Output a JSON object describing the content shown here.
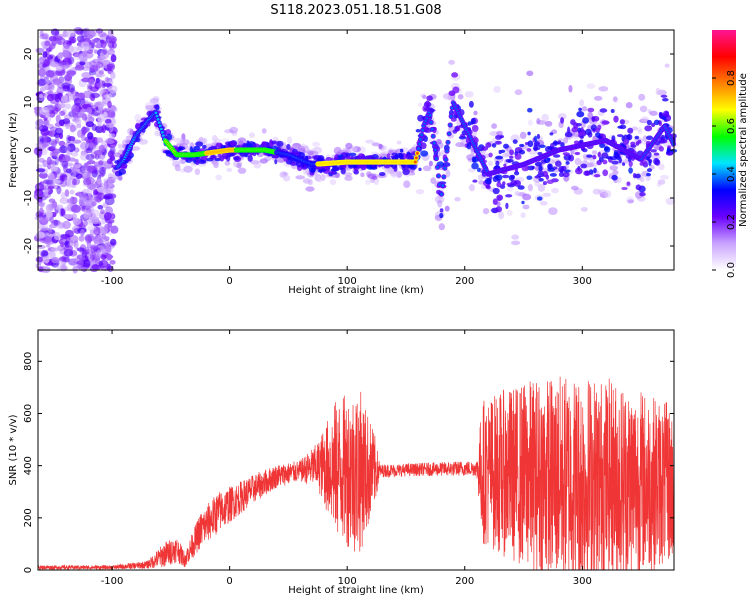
{
  "title": "S118.2023.051.18.51.G08",
  "chart_data": [
    {
      "type": "heatmap",
      "name": "spectrogram",
      "xlabel": "Height of straight line (km)",
      "ylabel": "Frequency (Hz)",
      "xlim": [
        -163,
        378
      ],
      "ylim": [
        -25,
        25
      ],
      "xticks": [
        -100,
        0,
        100,
        200,
        300
      ],
      "yticks": [
        -20,
        -10,
        0,
        10,
        20
      ],
      "colorbar": {
        "label": "Normalized spectral amplitude",
        "range": [
          0.0,
          1.0
        ],
        "ticks": [
          0.0,
          0.2,
          0.4,
          0.6,
          0.8
        ],
        "tick_labels": [
          "0.0",
          "0.2",
          "0.4",
          "0.6",
          "0.8"
        ],
        "colormap": [
          "#ffffff",
          "#c9a3ff",
          "#6a00ff",
          "#0000ff",
          "#00e5ff",
          "#00ff00",
          "#ffff00",
          "#ff8000",
          "#ff0000",
          "#ff1493"
        ]
      },
      "ridge": [
        {
          "x": -100,
          "y": -5
        },
        {
          "x": -90,
          "y": -2
        },
        {
          "x": -80,
          "y": 3
        },
        {
          "x": -70,
          "y": 6
        },
        {
          "x": -63,
          "y": 8
        },
        {
          "x": -55,
          "y": 2
        },
        {
          "x": -45,
          "y": -1
        },
        {
          "x": -30,
          "y": -1
        },
        {
          "x": 0,
          "y": 0
        },
        {
          "x": 30,
          "y": 0
        },
        {
          "x": 50,
          "y": -1
        },
        {
          "x": 70,
          "y": -3
        },
        {
          "x": 100,
          "y": -2.5
        },
        {
          "x": 130,
          "y": -2.5
        },
        {
          "x": 158,
          "y": -2.5
        },
        {
          "x": 165,
          "y": 5
        },
        {
          "x": 170,
          "y": 8
        },
        {
          "x": 175,
          "y": 0
        },
        {
          "x": 180,
          "y": -10
        },
        {
          "x": 190,
          "y": 10
        },
        {
          "x": 200,
          "y": 5
        },
        {
          "x": 220,
          "y": -5
        },
        {
          "x": 250,
          "y": -3
        },
        {
          "x": 280,
          "y": 0
        },
        {
          "x": 320,
          "y": 2
        },
        {
          "x": 350,
          "y": -2
        },
        {
          "x": 370,
          "y": 5
        },
        {
          "x": 378,
          "y": 1
        }
      ]
    },
    {
      "type": "line",
      "name": "snr",
      "xlabel": "Height of straight line (km)",
      "ylabel": "SNR (10 * v/v)",
      "xlim": [
        -163,
        378
      ],
      "ylim": [
        0,
        920
      ],
      "xticks": [
        -100,
        0,
        100,
        200,
        300
      ],
      "yticks": [
        0,
        200,
        400,
        600,
        800
      ],
      "color": "#ef3535",
      "envelope": [
        {
          "x": -163,
          "center": 10,
          "amp": 8
        },
        {
          "x": -100,
          "center": 10,
          "amp": 8
        },
        {
          "x": -70,
          "center": 20,
          "amp": 15
        },
        {
          "x": -55,
          "center": 60,
          "amp": 50
        },
        {
          "x": -45,
          "center": 80,
          "amp": 50
        },
        {
          "x": -38,
          "center": 40,
          "amp": 30
        },
        {
          "x": -25,
          "center": 150,
          "amp": 70
        },
        {
          "x": -10,
          "center": 220,
          "amp": 80
        },
        {
          "x": 0,
          "center": 250,
          "amp": 70
        },
        {
          "x": 20,
          "center": 310,
          "amp": 55
        },
        {
          "x": 40,
          "center": 360,
          "amp": 45
        },
        {
          "x": 60,
          "center": 380,
          "amp": 40
        },
        {
          "x": 75,
          "center": 400,
          "amp": 90
        },
        {
          "x": 90,
          "center": 390,
          "amp": 260
        },
        {
          "x": 110,
          "center": 380,
          "amp": 330
        },
        {
          "x": 123,
          "center": 380,
          "amp": 150
        },
        {
          "x": 128,
          "center": 380,
          "amp": 25
        },
        {
          "x": 160,
          "center": 385,
          "amp": 25
        },
        {
          "x": 210,
          "center": 390,
          "amp": 30
        },
        {
          "x": 215,
          "center": 380,
          "amp": 280
        },
        {
          "x": 260,
          "center": 360,
          "amp": 380
        },
        {
          "x": 300,
          "center": 340,
          "amp": 420
        },
        {
          "x": 340,
          "center": 340,
          "amp": 380
        },
        {
          "x": 378,
          "center": 330,
          "amp": 300
        }
      ]
    }
  ]
}
